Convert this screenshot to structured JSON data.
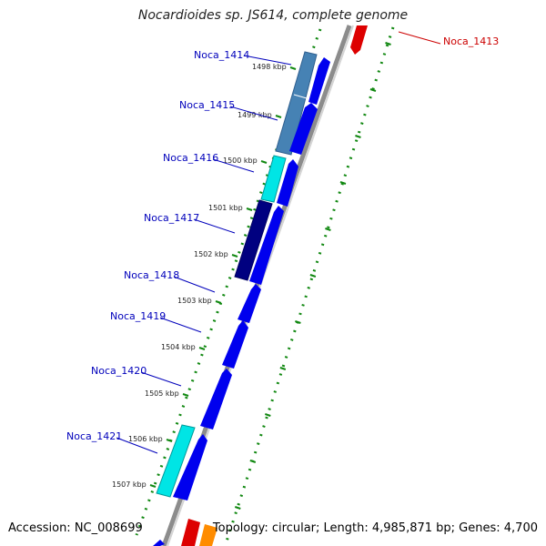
{
  "title": "Nocardioides sp. JS614, complete genome",
  "accession": "Accession: NC_008699",
  "topology": "Topology: circular; Length: 4,985,871 bp; Genes: 4,700",
  "colors": {
    "background": "#ffffff",
    "backbone": "#8c8c8c",
    "gene_forward": "#0000ee",
    "gene_reverse": "#dd0000",
    "ruler_dots": "#118811",
    "label_forward": "#0000bb",
    "label_reverse": "#cc0000"
  },
  "genes": [
    {
      "name": "Noca_1413",
      "strand": "reverse"
    },
    {
      "name": "Noca_1414",
      "strand": "forward"
    },
    {
      "name": "Noca_1415",
      "strand": "forward"
    },
    {
      "name": "Noca_1416",
      "strand": "forward"
    },
    {
      "name": "Noca_1417",
      "strand": "forward"
    },
    {
      "name": "Noca_1418",
      "strand": "forward"
    },
    {
      "name": "Noca_1419",
      "strand": "forward"
    },
    {
      "name": "Noca_1420",
      "strand": "forward"
    },
    {
      "name": "Noca_1421",
      "strand": "forward"
    }
  ],
  "kbp_ticks": [
    "1498 kbp",
    "1499 kbp",
    "1500 kbp",
    "1501 kbp",
    "1502 kbp",
    "1503 kbp",
    "1504 kbp",
    "1505 kbp",
    "1506 kbp",
    "1507 kbp"
  ]
}
